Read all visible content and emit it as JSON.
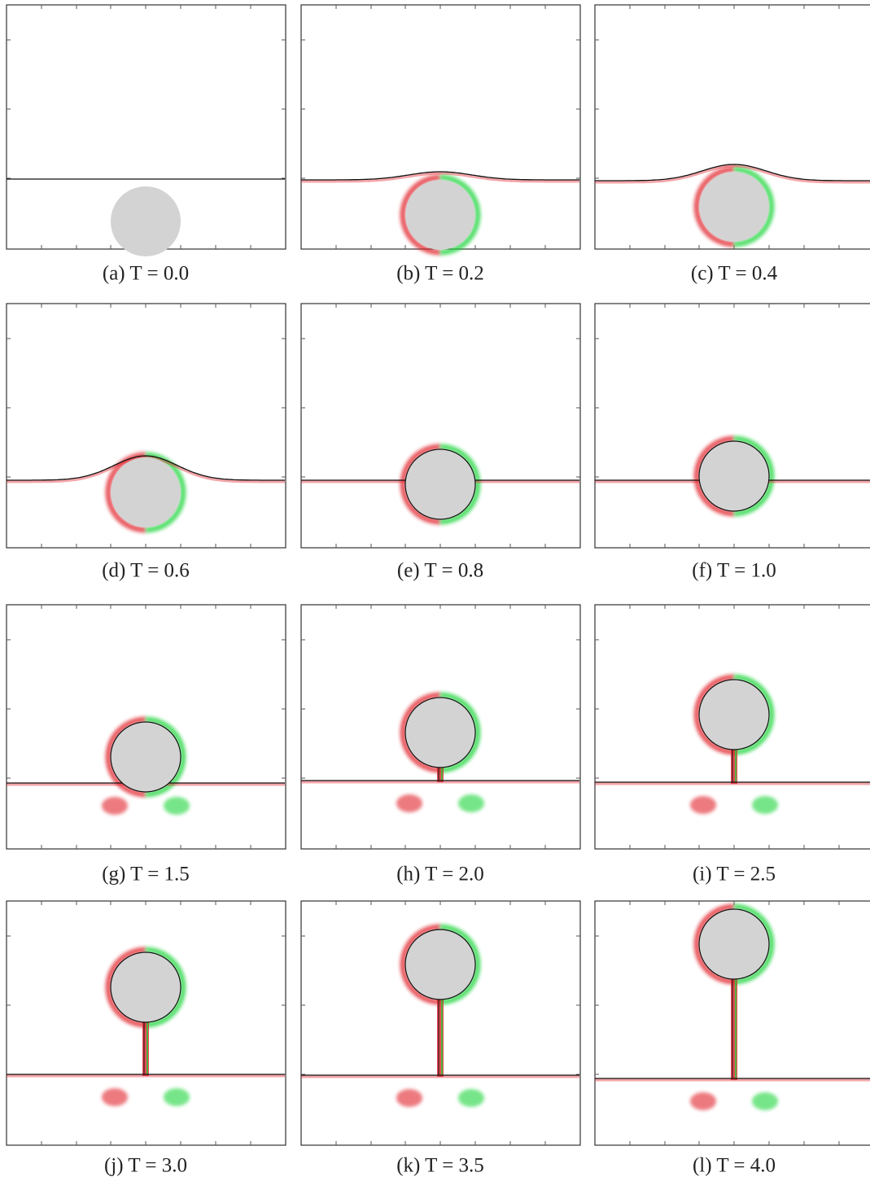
{
  "panels": [
    {
      "caption": "(a) T = 0.0"
    },
    {
      "caption": "(b) T = 0.2"
    },
    {
      "caption": "(c) T = 0.4"
    },
    {
      "caption": "(d) T = 0.6"
    },
    {
      "caption": "(e) T = 0.8"
    },
    {
      "caption": "(f) T = 1.0"
    },
    {
      "caption": "(g) T = 1.5"
    },
    {
      "caption": "(h) T = 2.0"
    },
    {
      "caption": "(i) T = 2.5"
    },
    {
      "caption": "(j) T = 3.0"
    },
    {
      "caption": "(k) T = 3.5"
    },
    {
      "caption": "(l) T = 4.0"
    }
  ]
}
